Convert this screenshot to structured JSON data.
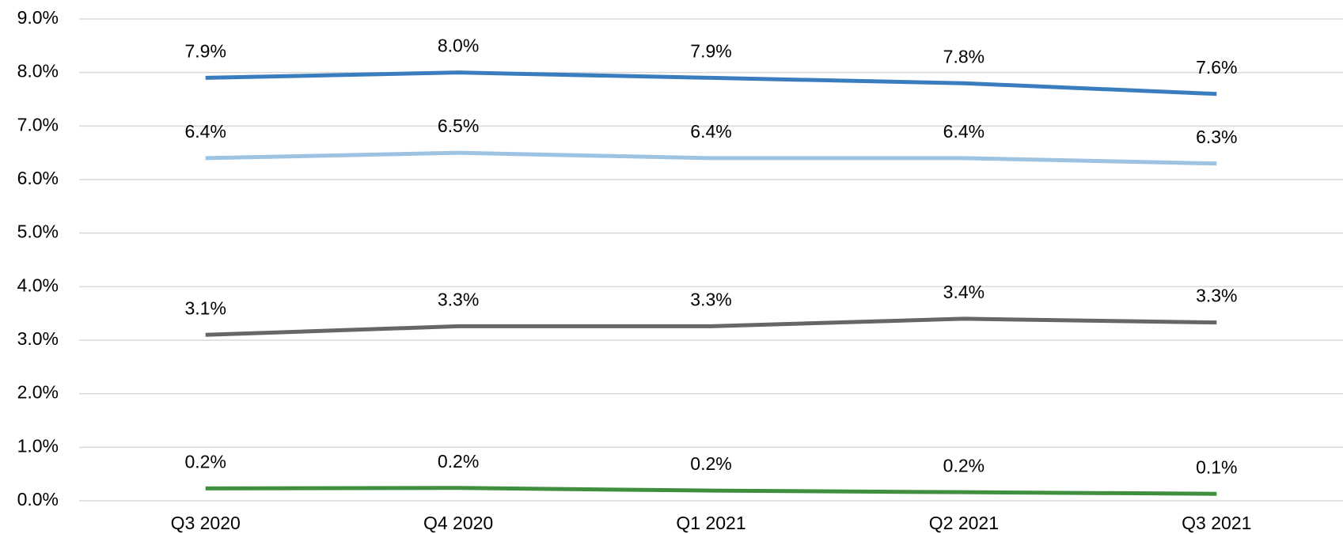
{
  "chart_data": {
    "type": "line",
    "categories": [
      "Q3 2020",
      "Q4 2020",
      "Q1 2021",
      "Q2 2021",
      "Q3 2021"
    ],
    "series": [
      {
        "color": "#3a7dbf",
        "values": [
          7.9,
          8.0,
          7.9,
          7.8,
          7.6
        ],
        "value_labels": [
          "7.9%",
          "8.0%",
          "7.9%",
          "7.8%",
          "7.6%"
        ]
      },
      {
        "color": "#9dc3e3",
        "values": [
          6.4,
          6.5,
          6.4,
          6.4,
          6.3
        ],
        "value_labels": [
          "6.4%",
          "6.5%",
          "6.4%",
          "6.4%",
          "6.3%"
        ]
      },
      {
        "color": "#666666",
        "values": [
          3.1,
          3.26,
          3.26,
          3.4,
          3.33
        ],
        "value_labels": [
          "3.1%",
          "3.3%",
          "3.3%",
          "3.4%",
          "3.3%"
        ]
      },
      {
        "color": "#3f8f3f",
        "values": [
          0.23,
          0.24,
          0.19,
          0.16,
          0.13
        ],
        "value_labels": [
          "0.2%",
          "0.2%",
          "0.2%",
          "0.2%",
          "0.1%"
        ]
      }
    ],
    "ylim": [
      0,
      9
    ],
    "yticks": [
      {
        "value": 0,
        "label": "0.0%"
      },
      {
        "value": 1,
        "label": "1.0%"
      },
      {
        "value": 2,
        "label": "2.0%"
      },
      {
        "value": 3,
        "label": "3.0%"
      },
      {
        "value": 4,
        "label": "4.0%"
      },
      {
        "value": 5,
        "label": "5.0%"
      },
      {
        "value": 6,
        "label": "6.0%"
      },
      {
        "value": 7,
        "label": "7.0%"
      },
      {
        "value": 8,
        "label": "8.0%"
      },
      {
        "value": 9,
        "label": "9.0%"
      }
    ],
    "grid": true
  }
}
